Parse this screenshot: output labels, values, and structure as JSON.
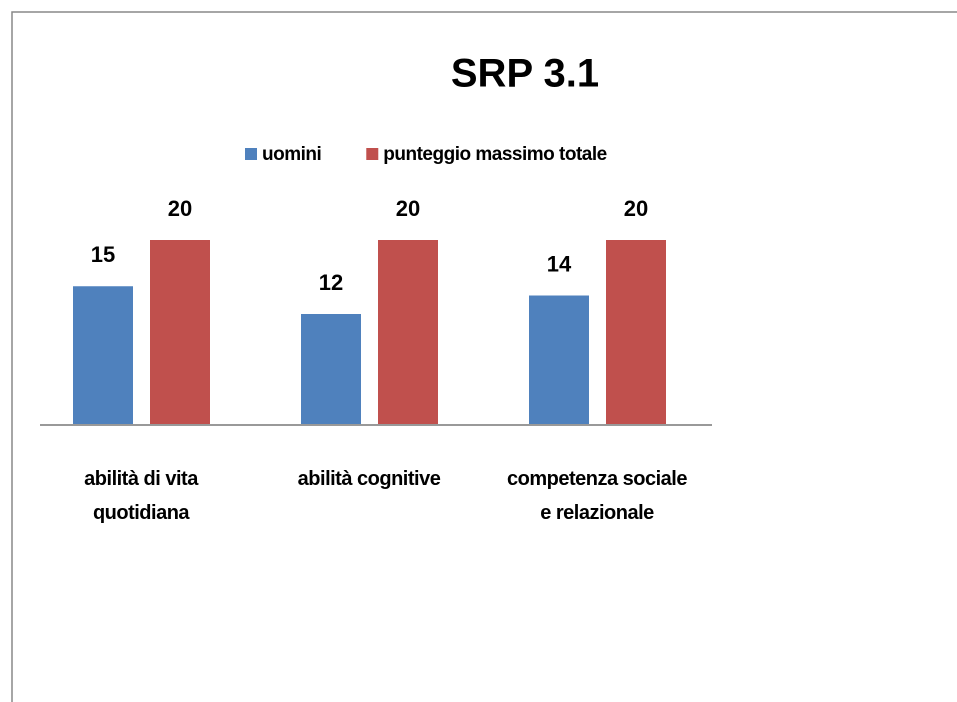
{
  "chart_data": {
    "type": "bar",
    "title": "SRP 3.1",
    "categories": [
      "abilità di vita quotidiana",
      "abilità cognitive",
      "competenza sociale e relazionale"
    ],
    "series": [
      {
        "name": "uomini",
        "color": "#4f81bd",
        "values": [
          15,
          12,
          14
        ]
      },
      {
        "name": "punteggio massimo totale",
        "color": "#c0504d",
        "values": [
          20,
          20,
          20
        ]
      }
    ],
    "ylim": [
      0,
      20
    ]
  }
}
